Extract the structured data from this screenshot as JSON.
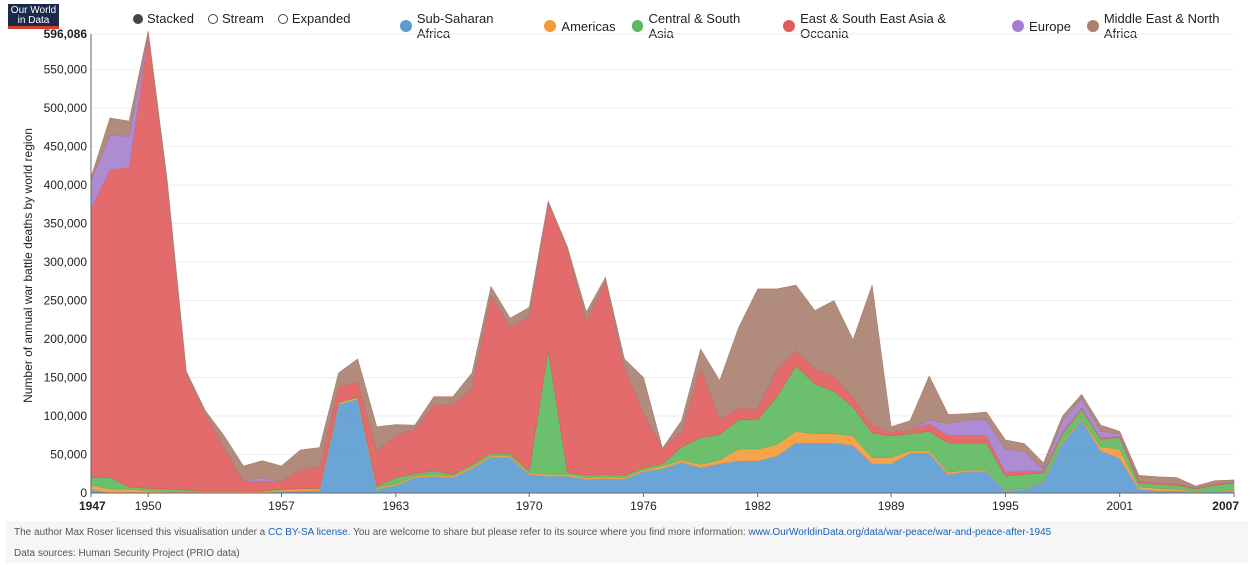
{
  "logo": {
    "line1": "Our World",
    "line2": "in Data"
  },
  "toggles": [
    {
      "label": "Stacked",
      "selected": true
    },
    {
      "label": "Stream",
      "selected": false
    },
    {
      "label": "Expanded",
      "selected": false
    }
  ],
  "footer": {
    "credit_prefix": "The author Max Roser licensed this visualisation under a ",
    "license_link": "CC BY-SA license",
    "credit_middle": ". You are welcome to share but please refer to its source where you find more information: ",
    "source_link": "www.OurWorldinData.org/data/war-peace/war-and-peace-after-1945",
    "data_sources": "Data sources: Human Security Project (PRIO data)"
  },
  "chart_data": {
    "type": "area",
    "stacked": true,
    "ylabel": "Number of annual war battle deaths by world region",
    "xlabel": "",
    "ylim": [
      0,
      596086
    ],
    "xlim": [
      1947,
      2007
    ],
    "x_ticks": [
      1947,
      1950,
      1957,
      1963,
      1970,
      1976,
      1982,
      1989,
      1995,
      2001,
      2007
    ],
    "x_ticks_bold": [
      1947,
      2007
    ],
    "y_ticks": [
      0,
      50000,
      100000,
      150000,
      200000,
      250000,
      300000,
      350000,
      400000,
      450000,
      500000,
      550000,
      596086
    ],
    "y_tick_labels": [
      "0",
      "50,000",
      "100,000",
      "150,000",
      "200,000",
      "250,000",
      "300,000",
      "350,000",
      "400,000",
      "450,000",
      "500,000",
      "550,000",
      "596,086"
    ],
    "x": [
      1947,
      1948,
      1949,
      1950,
      1951,
      1952,
      1953,
      1954,
      1955,
      1956,
      1957,
      1958,
      1959,
      1960,
      1961,
      1962,
      1963,
      1964,
      1965,
      1966,
      1967,
      1968,
      1969,
      1970,
      1971,
      1972,
      1973,
      1974,
      1975,
      1976,
      1977,
      1978,
      1979,
      1980,
      1981,
      1982,
      1983,
      1984,
      1985,
      1986,
      1987,
      1988,
      1989,
      1990,
      1991,
      1992,
      1993,
      1994,
      1995,
      1996,
      1997,
      1998,
      1999,
      2000,
      2001,
      2002,
      2003,
      2004,
      2005,
      2006,
      2007
    ],
    "series": [
      {
        "name": "Sub-Saharan Africa",
        "color": "#5b9bd1",
        "values": [
          5000,
          0,
          0,
          0,
          0,
          0,
          0,
          0,
          0,
          0,
          2000,
          3000,
          3000,
          115000,
          122000,
          5000,
          10000,
          20000,
          22000,
          20000,
          32000,
          47000,
          46000,
          24000,
          22000,
          22000,
          18000,
          19000,
          18000,
          28000,
          32000,
          40000,
          33000,
          38000,
          42000,
          42000,
          48000,
          65000,
          65000,
          65000,
          62000,
          38000,
          38000,
          52000,
          52000,
          24000,
          28000,
          28000,
          3000,
          5000,
          15000,
          65000,
          95000,
          55000,
          45000,
          5000,
          3000,
          3000,
          1000,
          2000,
          3000
        ]
      },
      {
        "name": "Americas",
        "color": "#f5993a",
        "values": [
          5000,
          5000,
          5000,
          3000,
          2000,
          2000,
          2000,
          2000,
          2000,
          2000,
          2000,
          2000,
          2000,
          2000,
          2000,
          2000,
          2000,
          2000,
          2000,
          2000,
          2000,
          2000,
          2000,
          2000,
          2000,
          2000,
          2000,
          2000,
          2000,
          2000,
          3000,
          3000,
          4000,
          5000,
          15000,
          15000,
          15000,
          15000,
          12000,
          12000,
          12000,
          8000,
          8000,
          3000,
          3000,
          3000,
          2000,
          2000,
          1000,
          1000,
          1000,
          2000,
          2000,
          5000,
          12000,
          3000,
          3000,
          2000,
          1000,
          1000,
          1000
        ]
      },
      {
        "name": "Central & South Asia",
        "color": "#5cb85c",
        "values": [
          10000,
          15000,
          3000,
          3000,
          3000,
          2000,
          1000,
          1000,
          1000,
          1000,
          1000,
          1000,
          1000,
          1000,
          1000,
          2000,
          8000,
          3000,
          5000,
          2000,
          3000,
          3000,
          3000,
          3000,
          162000,
          3000,
          3000,
          3000,
          3000,
          3000,
          3000,
          17000,
          35000,
          33000,
          38000,
          38000,
          62000,
          85000,
          65000,
          55000,
          38000,
          32000,
          28000,
          22000,
          25000,
          38000,
          35000,
          35000,
          18000,
          18000,
          10000,
          10000,
          12000,
          10000,
          15000,
          5000,
          5000,
          5000,
          3000,
          7000,
          9000
        ]
      },
      {
        "name": "East & South East Asia & Oceania",
        "color": "#e05b5b",
        "values": [
          350000,
          400000,
          415000,
          590000,
          395000,
          150000,
          100000,
          55000,
          12000,
          12000,
          10000,
          25000,
          28000,
          20000,
          20000,
          45000,
          55000,
          58000,
          85000,
          90000,
          100000,
          205000,
          165000,
          200000,
          190000,
          290000,
          200000,
          250000,
          140000,
          70000,
          20000,
          20000,
          90000,
          20000,
          15000,
          15000,
          35000,
          20000,
          20000,
          20000,
          12000,
          10000,
          5000,
          5000,
          10000,
          10000,
          10000,
          10000,
          5000,
          5000,
          3000,
          2000,
          2000,
          2000,
          2000,
          2000,
          2000,
          2000,
          1000,
          2000,
          1000
        ]
      },
      {
        "name": "Europe",
        "color": "#a57fcf",
        "values": [
          35000,
          45000,
          40000,
          0,
          0,
          0,
          0,
          0,
          0,
          5000,
          0,
          0,
          0,
          0,
          0,
          0,
          0,
          0,
          0,
          0,
          0,
          0,
          0,
          0,
          0,
          0,
          0,
          0,
          0,
          0,
          0,
          0,
          0,
          0,
          0,
          0,
          0,
          0,
          0,
          0,
          0,
          0,
          0,
          0,
          5000,
          15000,
          20000,
          20000,
          30000,
          25000,
          2000,
          15000,
          12000,
          8000,
          3000,
          0,
          0,
          0,
          0,
          0,
          0
        ]
      },
      {
        "name": "Middle East & North Africa",
        "color": "#a97f6f",
        "values": [
          5000,
          22000,
          20000,
          4000,
          6000,
          4000,
          4000,
          16000,
          20000,
          22000,
          20000,
          25000,
          25000,
          18000,
          29000,
          32000,
          14000,
          5000,
          11000,
          11000,
          19000,
          11000,
          11000,
          12000,
          3000,
          3000,
          12000,
          6000,
          11000,
          47000,
          0,
          14000,
          25000,
          50000,
          105000,
          155000,
          105000,
          85000,
          75000,
          98000,
          75000,
          182000,
          7000,
          12000,
          57000,
          12000,
          8000,
          10000,
          12000,
          10000,
          8000,
          6000,
          5000,
          8000,
          3000,
          8000,
          8000,
          8000,
          3000,
          4000,
          3000
        ]
      }
    ]
  }
}
